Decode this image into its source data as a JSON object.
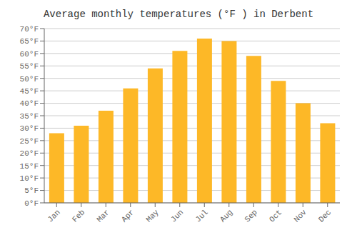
{
  "chart_data": {
    "type": "bar",
    "title": "Average monthly temperatures (°F ) in Derbent",
    "categories": [
      "Jan",
      "Feb",
      "Mar",
      "Apr",
      "May",
      "Jun",
      "Jul",
      "Aug",
      "Sep",
      "Oct",
      "Nov",
      "Dec"
    ],
    "values": [
      28,
      31,
      37,
      46,
      54,
      61,
      66,
      65,
      59,
      49,
      40,
      32
    ],
    "color": "#FDB827",
    "ylim": [
      0,
      70
    ],
    "yticks": [
      {
        "value": 0,
        "label": "0°F"
      },
      {
        "value": 5,
        "label": "5°F"
      },
      {
        "value": 10,
        "label": "10°F"
      },
      {
        "value": 15,
        "label": "15°F"
      },
      {
        "value": 20,
        "label": "20°F"
      },
      {
        "value": 25,
        "label": "25°F"
      },
      {
        "value": 30,
        "label": "30°F"
      },
      {
        "value": 35,
        "label": "35°F"
      },
      {
        "value": 40,
        "label": "40°F"
      },
      {
        "value": 45,
        "label": "45°F"
      },
      {
        "value": 50,
        "label": "50°F"
      },
      {
        "value": 55,
        "label": "55°F"
      },
      {
        "value": 60,
        "label": "60°F"
      },
      {
        "value": 65,
        "label": "65°F"
      },
      {
        "value": 70,
        "label": "70°F"
      }
    ],
    "grid": true
  }
}
